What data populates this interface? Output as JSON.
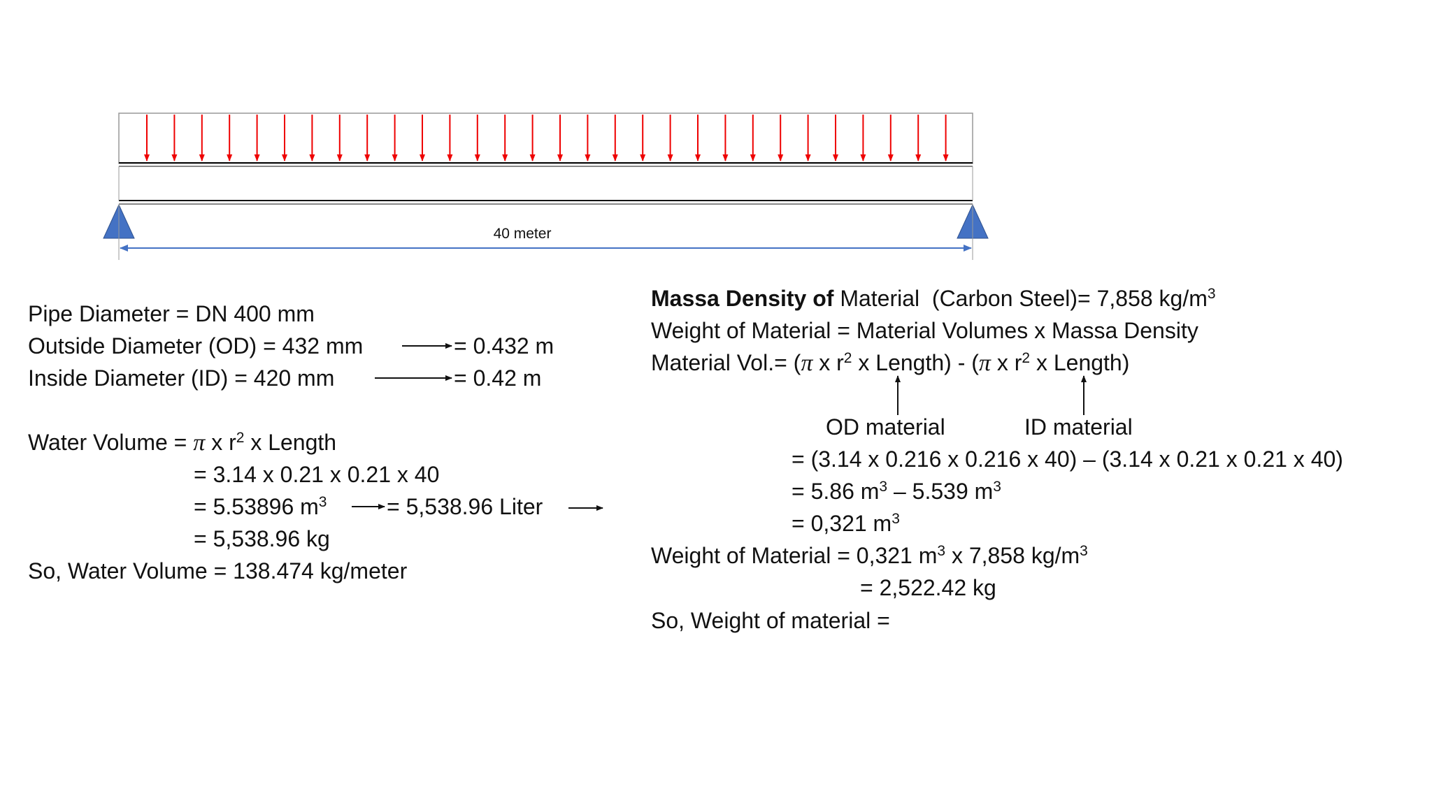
{
  "beam": {
    "span_label": "40 meter"
  },
  "left": {
    "lines": [
      [
        "Pipe Diameter = DN 400 mm"
      ],
      [
        "Outside Diameter (OD) = 432 mm",
        "= 0.432 m"
      ],
      [
        "Inside Diameter (ID) = 420 mm",
        "= 0.42 m"
      ],
      [
        "Water Volume = ",
        "π",
        " x r",
        "2",
        " x Length"
      ],
      [
        "= 3.14 x 0.21 x 0.21 x 40"
      ],
      [
        "= 5.53896 m",
        "3",
        "= 5,538.96 Liter"
      ],
      [
        "= 5,538.96 kg"
      ],
      [
        "So, Water Volume = 138.474 kg/meter"
      ]
    ]
  },
  "right": {
    "lines": [
      [
        "Massa Density of",
        " Material  (Carbon Steel)= 7,858 kg/m",
        "3"
      ],
      [
        "Weight of Material = Material Volumes x Massa Density"
      ],
      [
        "Material Vol.= (",
        "π",
        " x r",
        "2",
        " x Length) - (",
        "π",
        " x r",
        "2",
        " x Length)"
      ],
      [
        "OD material",
        "ID material"
      ],
      [
        "= (3.14 x 0.216 x 0.216 x 40) – (3.14 x 0.21 x 0.21 x 40)"
      ],
      [
        "= 5.86 m",
        "3",
        " – 5.539 m",
        "3"
      ],
      [
        "= 0,321 m",
        "3"
      ],
      [
        "Weight of Material = 0,321 m",
        "3",
        " x 7,858 kg/m",
        "3"
      ],
      [
        "= 2,522.42 kg"
      ],
      [
        "So, Weight of material ="
      ]
    ]
  }
}
